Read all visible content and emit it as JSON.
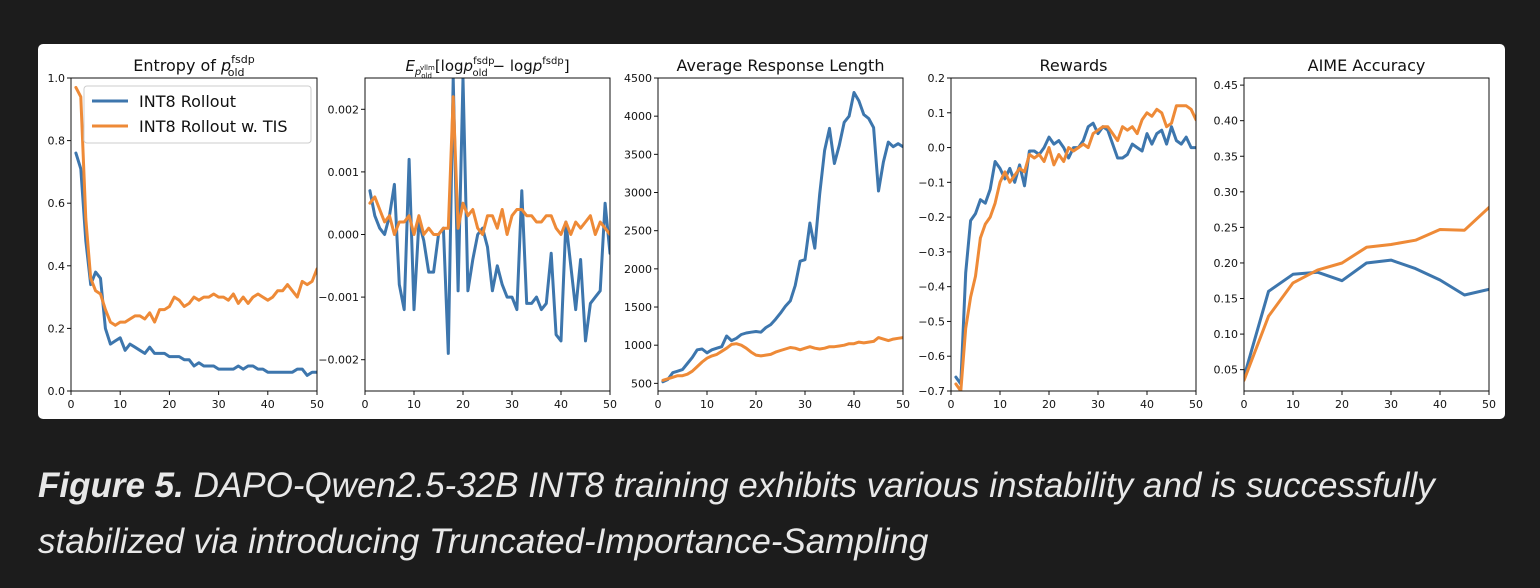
{
  "caption": {
    "label": "Figure 5.",
    "text": "DAPO-Qwen2.5-32B INT8 training exhibits various instability and is successfully stabilized via introducing Truncated-Importance-Sampling"
  },
  "colors": {
    "series_a": "#3d76ad",
    "series_b": "#ee8a37"
  },
  "legend": [
    "INT8 Rollout",
    "INT8 Rollout w. TIS"
  ],
  "chart_data": [
    {
      "type": "line",
      "title": "Entropy of p_old^fsdp",
      "xlim": [
        0,
        50
      ],
      "ylim": [
        0,
        1.0
      ],
      "xticks": [
        0,
        10,
        20,
        30,
        40,
        50
      ],
      "yticks": [
        0.0,
        0.2,
        0.4,
        0.6,
        0.8,
        1.0
      ],
      "ytick_labels": [
        "0.0",
        "0.2",
        "0.4",
        "0.6",
        "0.8",
        "1.0"
      ],
      "legend_position": "top-right",
      "series": [
        {
          "name": "INT8 Rollout",
          "color": "#3d76ad",
          "x": [
            1,
            2,
            3,
            4,
            5,
            6,
            7,
            8,
            9,
            10,
            11,
            12,
            13,
            14,
            15,
            16,
            17,
            18,
            19,
            20,
            21,
            22,
            23,
            24,
            25,
            26,
            27,
            28,
            29,
            30,
            31,
            32,
            33,
            34,
            35,
            36,
            37,
            38,
            39,
            40,
            41,
            42,
            43,
            44,
            45,
            46,
            47,
            48,
            49,
            50
          ],
          "y": [
            0.76,
            0.71,
            0.48,
            0.34,
            0.38,
            0.36,
            0.2,
            0.15,
            0.16,
            0.17,
            0.13,
            0.15,
            0.14,
            0.13,
            0.12,
            0.14,
            0.12,
            0.12,
            0.12,
            0.11,
            0.11,
            0.11,
            0.1,
            0.1,
            0.08,
            0.09,
            0.08,
            0.08,
            0.08,
            0.07,
            0.07,
            0.07,
            0.07,
            0.08,
            0.07,
            0.08,
            0.08,
            0.07,
            0.07,
            0.06,
            0.06,
            0.06,
            0.06,
            0.06,
            0.06,
            0.07,
            0.07,
            0.05,
            0.06,
            0.06
          ]
        },
        {
          "name": "INT8 Rollout w. TIS",
          "color": "#ee8a37",
          "x": [
            1,
            2,
            3,
            4,
            5,
            6,
            7,
            8,
            9,
            10,
            11,
            12,
            13,
            14,
            15,
            16,
            17,
            18,
            19,
            20,
            21,
            22,
            23,
            24,
            25,
            26,
            27,
            28,
            29,
            30,
            31,
            32,
            33,
            34,
            35,
            36,
            37,
            38,
            39,
            40,
            41,
            42,
            43,
            44,
            45,
            46,
            47,
            48,
            49,
            50
          ],
          "y": [
            0.97,
            0.94,
            0.55,
            0.36,
            0.32,
            0.31,
            0.26,
            0.22,
            0.21,
            0.22,
            0.22,
            0.23,
            0.24,
            0.24,
            0.23,
            0.25,
            0.22,
            0.26,
            0.26,
            0.27,
            0.3,
            0.29,
            0.27,
            0.28,
            0.3,
            0.29,
            0.3,
            0.3,
            0.31,
            0.3,
            0.3,
            0.29,
            0.31,
            0.28,
            0.3,
            0.28,
            0.3,
            0.31,
            0.3,
            0.29,
            0.3,
            0.32,
            0.32,
            0.34,
            0.32,
            0.3,
            0.35,
            0.34,
            0.35,
            0.39
          ]
        }
      ]
    },
    {
      "type": "line",
      "title": "E_{p_old^vllm}[log p_old^fsdp − log p^fsdp]",
      "xlim": [
        0,
        50
      ],
      "ylim": [
        -0.0025,
        0.0025
      ],
      "xticks": [
        0,
        10,
        20,
        30,
        40,
        50
      ],
      "yticks": [
        -0.002,
        -0.001,
        0.0,
        0.001,
        0.002
      ],
      "ytick_labels": [
        "−0.002",
        "−0.001",
        "0.000",
        "0.001",
        "0.002"
      ],
      "series": [
        {
          "name": "INT8 Rollout",
          "color": "#3d76ad",
          "x": [
            1,
            2,
            3,
            4,
            5,
            6,
            7,
            8,
            9,
            10,
            11,
            12,
            13,
            14,
            15,
            16,
            17,
            18,
            19,
            20,
            21,
            22,
            23,
            24,
            25,
            26,
            27,
            28,
            29,
            30,
            31,
            32,
            33,
            34,
            35,
            36,
            37,
            38,
            39,
            40,
            41,
            42,
            43,
            44,
            45,
            46,
            47,
            48,
            49,
            50
          ],
          "y": [
            0.0007,
            0.0003,
            0.0001,
            0.0,
            0.0003,
            0.0008,
            -0.0008,
            -0.0012,
            0.0012,
            -0.0012,
            0.0002,
            -0.0001,
            -0.0006,
            -0.0006,
            0.0,
            0.0001,
            -0.0019,
            0.0025,
            -0.0009,
            0.0025,
            -0.0009,
            -0.0004,
            0.0,
            0.0001,
            -0.0002,
            -0.0009,
            -0.0005,
            -0.0008,
            -0.001,
            -0.001,
            -0.0012,
            0.0007,
            -0.0011,
            -0.0011,
            -0.001,
            -0.0012,
            -0.0011,
            -0.0003,
            -0.0016,
            -0.0017,
            0.0002,
            -0.0005,
            -0.0012,
            -0.0004,
            -0.0017,
            -0.0011,
            -0.001,
            -0.0009,
            0.0005,
            -0.0003
          ]
        },
        {
          "name": "INT8 Rollout w. TIS",
          "color": "#ee8a37",
          "x": [
            1,
            2,
            3,
            4,
            5,
            6,
            7,
            8,
            9,
            10,
            11,
            12,
            13,
            14,
            15,
            16,
            17,
            18,
            19,
            20,
            21,
            22,
            23,
            24,
            25,
            26,
            27,
            28,
            29,
            30,
            31,
            32,
            33,
            34,
            35,
            36,
            37,
            38,
            39,
            40,
            41,
            42,
            43,
            44,
            45,
            46,
            47,
            48,
            49,
            50
          ],
          "y": [
            0.0005,
            0.0006,
            0.0004,
            0.0002,
            0.0003,
            0.0,
            0.0002,
            0.0002,
            0.0003,
            0.0,
            0.0003,
            0.0,
            0.0001,
            0.0,
            0.0,
            0.0001,
            0.0001,
            0.0022,
            0.0001,
            0.0005,
            0.0003,
            0.0004,
            0.0001,
            0.0,
            0.0003,
            0.0003,
            0.0001,
            0.0004,
            0.0,
            0.0003,
            0.0004,
            0.0004,
            0.0003,
            0.0003,
            0.0002,
            0.0002,
            0.0003,
            0.0003,
            0.0001,
            0.0,
            0.0002,
            0.0,
            0.0002,
            0.0001,
            0.0002,
            0.0003,
            0.0,
            0.0002,
            0.0001,
            0.0
          ]
        }
      ]
    },
    {
      "type": "line",
      "title": "Average Response Length",
      "xlim": [
        0,
        50
      ],
      "ylim": [
        400,
        4500
      ],
      "xticks": [
        0,
        10,
        20,
        30,
        40,
        50
      ],
      "yticks": [
        500,
        1000,
        1500,
        2000,
        2500,
        3000,
        3500,
        4000,
        4500
      ],
      "ytick_labels": [
        "500",
        "1000",
        "1500",
        "2000",
        "2500",
        "3000",
        "3500",
        "4000",
        "4500"
      ],
      "series": [
        {
          "name": "INT8 Rollout",
          "color": "#3d76ad",
          "x": [
            1,
            2,
            3,
            4,
            5,
            6,
            7,
            8,
            9,
            10,
            11,
            12,
            13,
            14,
            15,
            16,
            17,
            18,
            19,
            20,
            21,
            22,
            23,
            24,
            25,
            26,
            27,
            28,
            29,
            30,
            31,
            32,
            33,
            34,
            35,
            36,
            37,
            38,
            39,
            40,
            41,
            42,
            43,
            44,
            45,
            46,
            47,
            48,
            49,
            50
          ],
          "y": [
            520,
            550,
            640,
            660,
            680,
            760,
            840,
            940,
            950,
            900,
            940,
            960,
            980,
            1120,
            1060,
            1090,
            1140,
            1160,
            1170,
            1180,
            1170,
            1230,
            1270,
            1340,
            1420,
            1510,
            1580,
            1780,
            2100,
            2120,
            2600,
            2270,
            2980,
            3550,
            3840,
            3380,
            3620,
            3920,
            4000,
            4310,
            4200,
            4020,
            3970,
            3850,
            3020,
            3400,
            3660,
            3600,
            3640,
            3600
          ]
        },
        {
          "name": "INT8 Rollout w. TIS",
          "color": "#ee8a37",
          "x": [
            1,
            2,
            3,
            4,
            5,
            6,
            7,
            8,
            9,
            10,
            11,
            12,
            13,
            14,
            15,
            16,
            17,
            18,
            19,
            20,
            21,
            22,
            23,
            24,
            25,
            26,
            27,
            28,
            29,
            30,
            31,
            32,
            33,
            34,
            35,
            36,
            37,
            38,
            39,
            40,
            41,
            42,
            43,
            44,
            45,
            46,
            47,
            48,
            49,
            50
          ],
          "y": [
            540,
            560,
            580,
            600,
            600,
            620,
            660,
            720,
            780,
            830,
            860,
            880,
            920,
            960,
            1010,
            1020,
            1000,
            960,
            910,
            870,
            860,
            870,
            880,
            910,
            930,
            950,
            970,
            960,
            940,
            960,
            980,
            960,
            950,
            960,
            980,
            980,
            990,
            1000,
            1020,
            1020,
            1040,
            1030,
            1040,
            1050,
            1100,
            1080,
            1060,
            1080,
            1090,
            1100
          ]
        }
      ]
    },
    {
      "type": "line",
      "title": "Rewards",
      "xlim": [
        0,
        50
      ],
      "ylim": [
        -0.7,
        0.2
      ],
      "xticks": [
        0,
        10,
        20,
        30,
        40,
        50
      ],
      "yticks": [
        -0.7,
        -0.6,
        -0.5,
        -0.4,
        -0.3,
        -0.2,
        -0.1,
        0.0,
        0.1,
        0.2
      ],
      "ytick_labels": [
        "−0.7",
        "−0.6",
        "−0.5",
        "−0.4",
        "−0.3",
        "−0.2",
        "−0.1",
        "0.0",
        "0.1",
        "0.2"
      ],
      "series": [
        {
          "name": "INT8 Rollout",
          "color": "#3d76ad",
          "x": [
            1,
            2,
            3,
            4,
            5,
            6,
            7,
            8,
            9,
            10,
            11,
            12,
            13,
            14,
            15,
            16,
            17,
            18,
            19,
            20,
            21,
            22,
            23,
            24,
            25,
            26,
            27,
            28,
            29,
            30,
            31,
            32,
            33,
            34,
            35,
            36,
            37,
            38,
            39,
            40,
            41,
            42,
            43,
            44,
            45,
            46,
            47,
            48,
            49,
            50
          ],
          "y": [
            -0.66,
            -0.68,
            -0.36,
            -0.21,
            -0.19,
            -0.15,
            -0.16,
            -0.12,
            -0.04,
            -0.06,
            -0.09,
            -0.06,
            -0.1,
            -0.05,
            -0.11,
            -0.01,
            -0.01,
            -0.02,
            0.0,
            0.03,
            0.01,
            0.02,
            0.0,
            -0.03,
            0.0,
            0.0,
            0.02,
            0.06,
            0.07,
            0.04,
            0.06,
            0.05,
            0.01,
            -0.03,
            -0.03,
            -0.02,
            0.01,
            0.0,
            -0.01,
            0.04,
            0.01,
            0.04,
            0.05,
            0.01,
            0.06,
            0.02,
            0.01,
            0.03,
            0.0,
            0.0
          ]
        },
        {
          "name": "INT8 Rollout w. TIS",
          "color": "#ee8a37",
          "x": [
            1,
            2,
            3,
            4,
            5,
            6,
            7,
            8,
            9,
            10,
            11,
            12,
            13,
            14,
            15,
            16,
            17,
            18,
            19,
            20,
            21,
            22,
            23,
            24,
            25,
            26,
            27,
            28,
            29,
            30,
            31,
            32,
            33,
            34,
            35,
            36,
            37,
            38,
            39,
            40,
            41,
            42,
            43,
            44,
            45,
            46,
            47,
            48,
            49,
            50
          ],
          "y": [
            -0.68,
            -0.7,
            -0.52,
            -0.43,
            -0.37,
            -0.26,
            -0.22,
            -0.2,
            -0.16,
            -0.1,
            -0.07,
            -0.1,
            -0.08,
            -0.06,
            -0.07,
            -0.02,
            -0.03,
            -0.02,
            -0.04,
            0.0,
            -0.05,
            -0.02,
            -0.04,
            0.0,
            -0.01,
            0.0,
            0.01,
            0.0,
            0.04,
            0.05,
            0.06,
            0.06,
            0.04,
            0.02,
            0.06,
            0.05,
            0.06,
            0.04,
            0.08,
            0.1,
            0.09,
            0.11,
            0.1,
            0.06,
            0.07,
            0.12,
            0.12,
            0.12,
            0.11,
            0.08
          ]
        }
      ]
    },
    {
      "type": "line",
      "title": "AIME Accuracy",
      "xlim": [
        0,
        50
      ],
      "ylim": [
        0.02,
        0.46
      ],
      "xticks": [
        0,
        10,
        20,
        30,
        40,
        50
      ],
      "yticks": [
        0.05,
        0.1,
        0.15,
        0.2,
        0.25,
        0.3,
        0.35,
        0.4,
        0.45
      ],
      "ytick_labels": [
        "0.05",
        "0.10",
        "0.15",
        "0.20",
        "0.25",
        "0.30",
        "0.35",
        "0.40",
        "0.45"
      ],
      "series": [
        {
          "name": "INT8 Rollout",
          "color": "#3d76ad",
          "x": [
            0,
            5,
            10,
            15,
            20,
            25,
            30,
            35,
            40,
            45,
            50
          ],
          "y": [
            0.04,
            0.16,
            0.184,
            0.187,
            0.175,
            0.2,
            0.204,
            0.192,
            0.176,
            0.155,
            0.163
          ]
        },
        {
          "name": "INT8 Rollout w. TIS",
          "color": "#ee8a37",
          "x": [
            0,
            5,
            10,
            15,
            20,
            25,
            30,
            35,
            40,
            45,
            50
          ],
          "y": [
            0.035,
            0.125,
            0.172,
            0.19,
            0.2,
            0.222,
            0.226,
            0.232,
            0.247,
            0.246,
            0.278
          ]
        }
      ]
    }
  ]
}
